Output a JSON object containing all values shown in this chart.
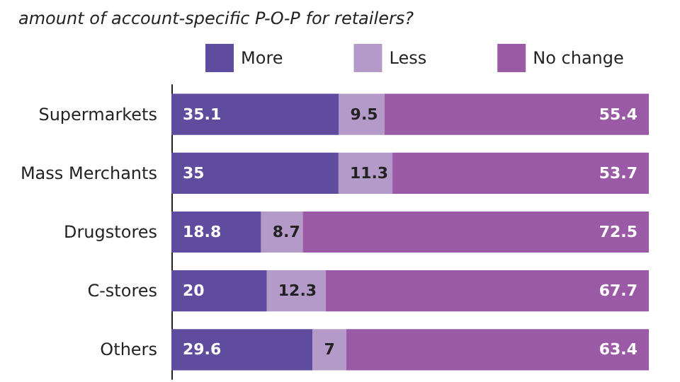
{
  "chart_data": {
    "type": "bar",
    "orientation": "horizontal",
    "stacked": true,
    "title": "amount of account-specific P-O-P for retailers?",
    "categories": [
      "Supermarkets",
      "Mass Merchants",
      "Drugstores",
      "C-stores",
      "Others"
    ],
    "series": [
      {
        "name": "More",
        "color": "#5f4c9f",
        "values": [
          35.1,
          35,
          18.8,
          20,
          29.6
        ]
      },
      {
        "name": "Less",
        "color": "#b39ac9",
        "values": [
          9.5,
          11.3,
          8.7,
          12.3,
          7
        ]
      },
      {
        "name": "No change",
        "color": "#9a5aa5",
        "values": [
          55.4,
          53.7,
          72.5,
          67.7,
          63.4
        ]
      }
    ],
    "data_labels": true,
    "legend": "top"
  }
}
